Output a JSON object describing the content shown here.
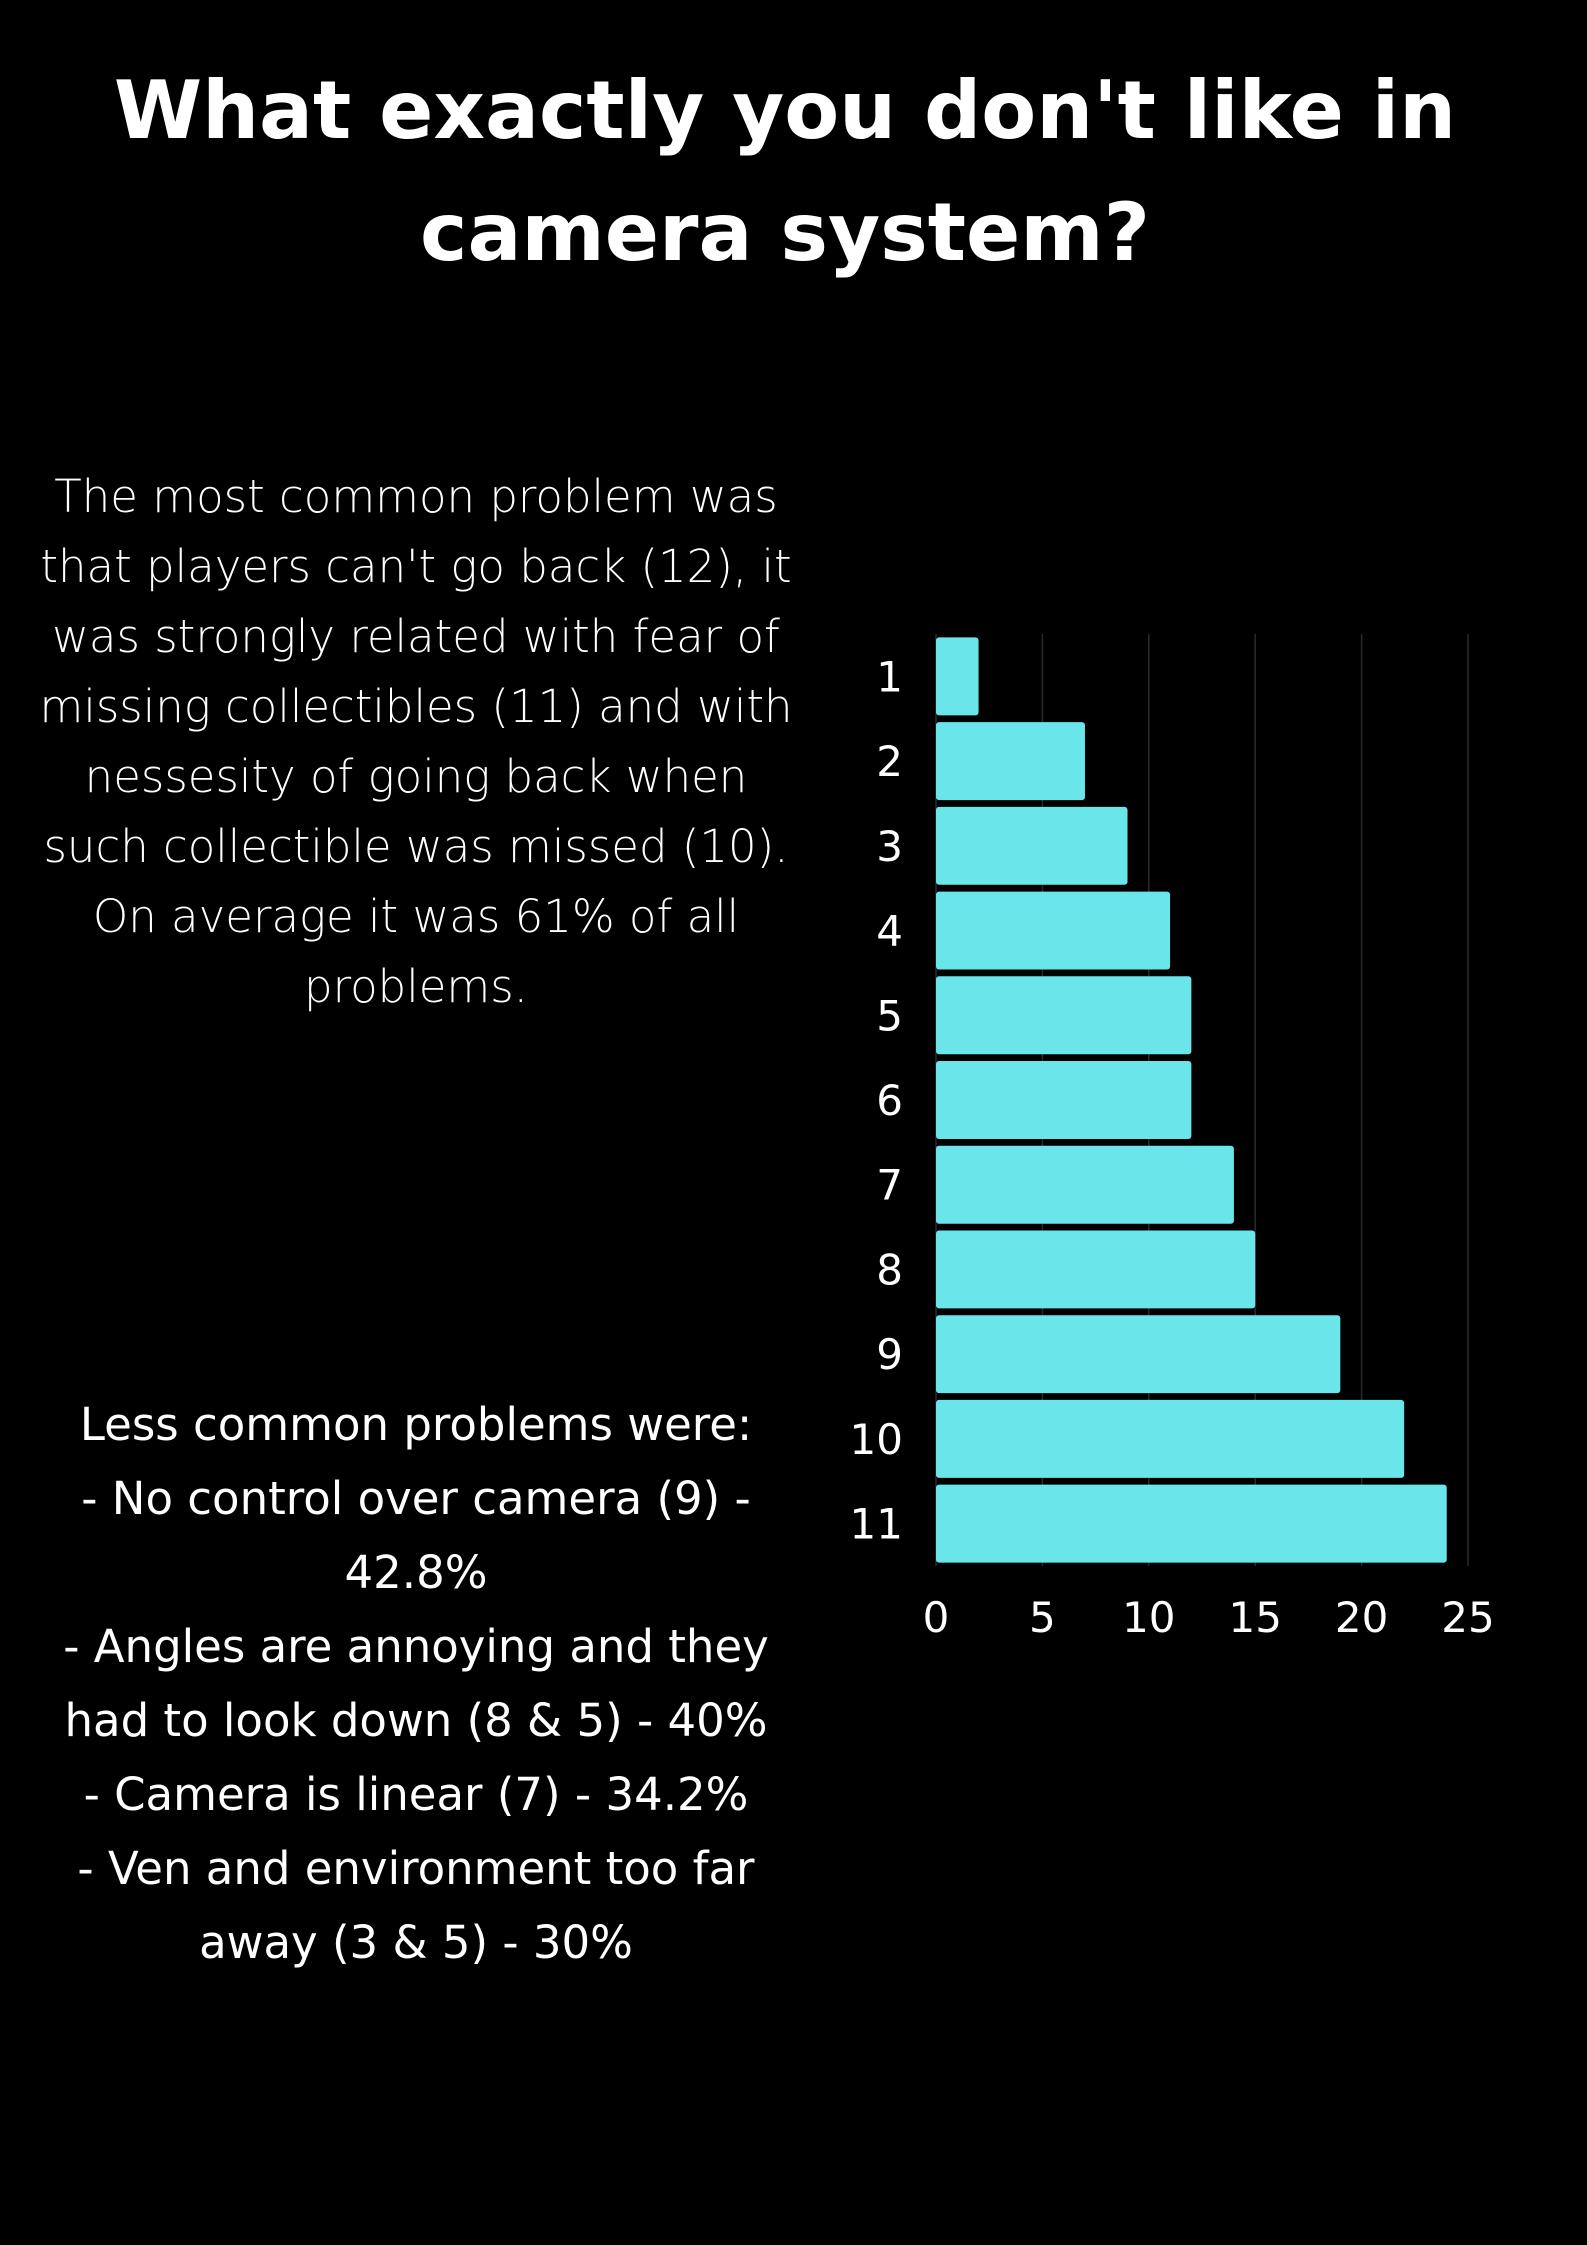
{
  "title": "What exactly you don't like in camera system?",
  "summary": "The most common problem was that players can't go back (12), it was strongly related with fear of missing collectibles (11) and with nessesity of going back when such collectible was missed (10). On average it was 61% of all problems.",
  "problems": {
    "heading": "Less common problems were:",
    "items": [
      "- No control over camera (9) - 42.8%",
      "- Angles are annoying and they had to look down (8 & 5) - 40%",
      "- Camera is linear (7) - 34.2%",
      "- Ven and environment too far away (3 & 5) - 30%"
    ]
  },
  "colors": {
    "background": "#000000",
    "text": "#ffffff",
    "bar": "#6ae5ea",
    "grid": "#2a2a2a"
  },
  "chart_data": {
    "type": "bar",
    "orientation": "horizontal",
    "categories": [
      "1",
      "2",
      "3",
      "4",
      "5",
      "6",
      "7",
      "8",
      "9",
      "10",
      "11"
    ],
    "values": [
      2,
      7,
      9,
      11,
      12,
      12,
      14,
      15,
      19,
      22,
      24
    ],
    "xticks": [
      "0",
      "5",
      "10",
      "15",
      "20",
      "25"
    ],
    "xlim": [
      0,
      25
    ],
    "grid": "vertical",
    "legend": "none"
  }
}
